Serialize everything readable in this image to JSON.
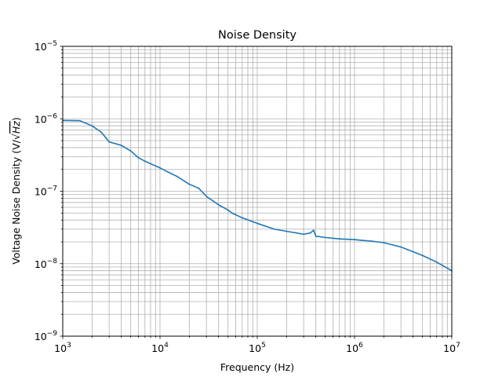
{
  "chart_data": {
    "type": "line",
    "title": "Noise Density",
    "xlabel": "Frequency (Hz)",
    "ylabel_prefix": "Voltage Noise Density (V/",
    "ylabel_sqrt": "Hz",
    "ylabel_suffix": ")",
    "x_scale": "log",
    "y_scale": "log",
    "xlim": [
      1000,
      10000000
    ],
    "ylim": [
      1e-09,
      1e-05
    ],
    "grid": true,
    "grid_minor": true,
    "x_ticks": [
      {
        "value": 1000,
        "base": "10",
        "exp": "3"
      },
      {
        "value": 10000,
        "base": "10",
        "exp": "4"
      },
      {
        "value": 100000,
        "base": "10",
        "exp": "5"
      },
      {
        "value": 1000000,
        "base": "10",
        "exp": "6"
      },
      {
        "value": 10000000,
        "base": "10",
        "exp": "7"
      }
    ],
    "y_ticks": [
      {
        "value": 1e-09,
        "base": "10",
        "exp": "−9"
      },
      {
        "value": 1e-08,
        "base": "10",
        "exp": "−8"
      },
      {
        "value": 1e-07,
        "base": "10",
        "exp": "−7"
      },
      {
        "value": 1e-06,
        "base": "10",
        "exp": "−6"
      },
      {
        "value": 1e-05,
        "base": "10",
        "exp": "−5"
      }
    ],
    "series": [
      {
        "color": "#1f77b4",
        "x": [
          1000,
          1500,
          2000,
          2500,
          3000,
          4000,
          5000,
          6000,
          7000,
          8000,
          10000,
          12000,
          15000,
          20000,
          25000,
          30000,
          40000,
          50000,
          55000,
          70000,
          100000,
          150000,
          200000,
          300000,
          350000,
          380000,
          400000,
          500000,
          700000,
          1000000,
          1200000,
          1500000,
          2000000,
          3000000,
          5000000,
          7000000,
          10000000
        ],
        "y": [
          9.5e-07,
          9.4e-07,
          8e-07,
          6.5e-07,
          4.8e-07,
          4.3e-07,
          3.6e-07,
          2.9e-07,
          2.6e-07,
          2.4e-07,
          2.1e-07,
          1.85e-07,
          1.6e-07,
          1.25e-07,
          1.1e-07,
          8.5e-08,
          6.5e-08,
          5.5e-08,
          5e-08,
          4.3e-08,
          3.6e-08,
          3e-08,
          2.8e-08,
          2.55e-08,
          2.65e-08,
          2.9e-08,
          2.4e-08,
          2.3e-08,
          2.2e-08,
          2.15e-08,
          2.1e-08,
          2.05e-08,
          1.95e-08,
          1.7e-08,
          1.3e-08,
          1.05e-08,
          8e-09
        ]
      }
    ]
  }
}
